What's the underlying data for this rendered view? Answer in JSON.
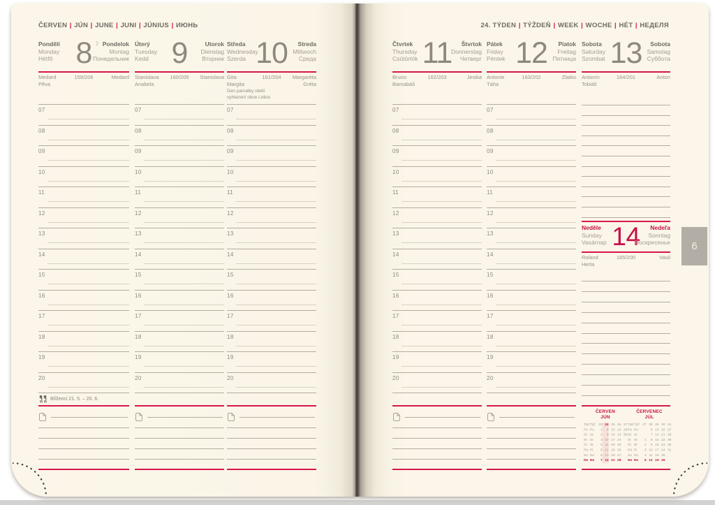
{
  "left_header_parts": [
    "ČERVEN",
    "JÚN",
    "JUNE",
    "JUNI",
    "JÚNIUS",
    "ИЮНЬ"
  ],
  "right_header_parts": [
    "24. TÝDEN",
    "TÝŽDEŇ",
    "WEEK",
    "WOCHE",
    "HÉT",
    "НЕДЕЛЯ"
  ],
  "month_tab": "6",
  "hours": [
    "07",
    "08",
    "09",
    "10",
    "11",
    "12",
    "13",
    "14",
    "15",
    "16",
    "17",
    "18",
    "19",
    "20"
  ],
  "zodiac_label": "Blíženci 21. 5. – 20. 6.",
  "days": [
    {
      "cs": "Pondělí",
      "en": "Monday",
      "hu": "Hétfő",
      "num": "8",
      "moon": "☾",
      "sk": "Pondelok",
      "de": "Montag",
      "ru": "Понедельник",
      "name_left": [
        "Medard",
        "Pěva"
      ],
      "doy": "159/206",
      "name_right": [
        "Medard"
      ]
    },
    {
      "cs": "Úterý",
      "en": "Tuesday",
      "hu": "Kedd",
      "num": "9",
      "sk": "Utorok",
      "de": "Dienstag",
      "ru": "Вторник",
      "name_left": [
        "Stanislava",
        "Anabela"
      ],
      "doy": "160/205",
      "name_right": [
        "Stanislava"
      ]
    },
    {
      "cs": "Středa",
      "en": "Wednesday",
      "hu": "Szerda",
      "num": "10",
      "sk": "Streda",
      "de": "Mittwoch",
      "ru": "Среда",
      "name_left": [
        "Gita",
        "Margita"
      ],
      "doy": "161/204",
      "name_right": [
        "Margaréta",
        "Gréta"
      ],
      "note": "Den památky obětí vyhlazení obce Lidice"
    },
    {
      "cs": "Čtvrtek",
      "en": "Thursday",
      "hu": "Csütörtök",
      "num": "11",
      "sk": "Štvrtok",
      "de": "Donnerstag",
      "ru": "Четверг",
      "name_left": [
        "Bruno",
        "Barnabáš"
      ],
      "doy": "162/203",
      "name_right": [
        "Jesika"
      ]
    },
    {
      "cs": "Pátek",
      "en": "Friday",
      "hu": "Péntek",
      "num": "12",
      "sk": "Piatok",
      "de": "Freitag",
      "ru": "Пятница",
      "name_left": [
        "Antonie",
        "Táňa"
      ],
      "doy": "163/202",
      "name_right": [
        "Zlatko"
      ]
    },
    {
      "cs": "Sobota",
      "en": "Saturday",
      "hu": "Szombat",
      "num": "13",
      "sk": "Sobota",
      "de": "Samstag",
      "ru": "Суббота",
      "name_left": [
        "Antonín",
        "Tobiáš"
      ],
      "doy": "164/201",
      "name_right": [
        "Anton"
      ]
    }
  ],
  "sunday": {
    "cs": "Neděle",
    "en": "Sunday",
    "hu": "Vasárnap",
    "num": "14",
    "sk": "Nedeľa",
    "de": "Sonntag",
    "ru": "Воскресенье",
    "name_left": [
      "Roland",
      "Herta"
    ],
    "doy": "165/200",
    "name_right": [
      "Vasil"
    ]
  },
  "mini_calendars": [
    {
      "title": "ČERVEN",
      "subtitle": "JÚN",
      "week_label_cs": "Týd",
      "week_label_sk": "Týž",
      "week_numbers": [
        "23",
        "24",
        "25",
        "26",
        "27"
      ],
      "highlight_week": "24",
      "rows": [
        {
          "cs": "Po",
          "sk": "Po",
          "days": [
            "1",
            "8",
            "15",
            "22",
            "29"
          ]
        },
        {
          "cs": "Út",
          "sk": "Ut",
          "days": [
            "2",
            "9",
            "16",
            "23",
            "30"
          ]
        },
        {
          "cs": "St",
          "sk": "St",
          "days": [
            "3",
            "10",
            "17",
            "24",
            ""
          ]
        },
        {
          "cs": "Čt",
          "sk": "Št",
          "days": [
            "4",
            "11",
            "18",
            "25",
            ""
          ]
        },
        {
          "cs": "Pá",
          "sk": "Pi",
          "days": [
            "5",
            "12",
            "19",
            "26",
            ""
          ]
        },
        {
          "cs": "So",
          "sk": "So",
          "days": [
            "6",
            "13",
            "20",
            "27",
            ""
          ]
        },
        {
          "cs": "Ne",
          "sk": "Ne",
          "days": [
            "7",
            "14",
            "21",
            "28",
            ""
          ],
          "red": true
        }
      ]
    },
    {
      "title": "ČERVENEC",
      "subtitle": "JÚL",
      "week_label_cs": "Týd",
      "week_label_sk": "Týž",
      "week_numbers": [
        "27",
        "28",
        "29",
        "30",
        "31"
      ],
      "rows": [
        {
          "cs": "Po",
          "sk": "Po",
          "days": [
            "",
            "6",
            "13",
            "20",
            "27"
          ]
        },
        {
          "cs": "Út",
          "sk": "Ut",
          "days": [
            "",
            "7",
            "14",
            "21",
            "28"
          ]
        },
        {
          "cs": "St",
          "sk": "St",
          "days": [
            "1",
            "8",
            "15",
            "22",
            "29"
          ]
        },
        {
          "cs": "Čt",
          "sk": "Št",
          "days": [
            "2",
            "9",
            "16",
            "23",
            "30"
          ]
        },
        {
          "cs": "Pá",
          "sk": "Pi",
          "days": [
            "3",
            "10",
            "17",
            "24",
            "31"
          ]
        },
        {
          "cs": "So",
          "sk": "So",
          "days": [
            "4",
            "11",
            "18",
            "25",
            ""
          ]
        },
        {
          "cs": "Ne",
          "sk": "Ne",
          "days": [
            "5",
            "12",
            "19",
            "26",
            ""
          ],
          "red": true
        }
      ]
    }
  ],
  "colors": {
    "accent_rule": "#d6164e",
    "accent_text": "#c8104a",
    "page": "#faf5e7",
    "text_dark": "#6f6a62",
    "text_light": "#a39d92",
    "line": "#b3ad9f",
    "tab_bg": "#b3aea5"
  }
}
